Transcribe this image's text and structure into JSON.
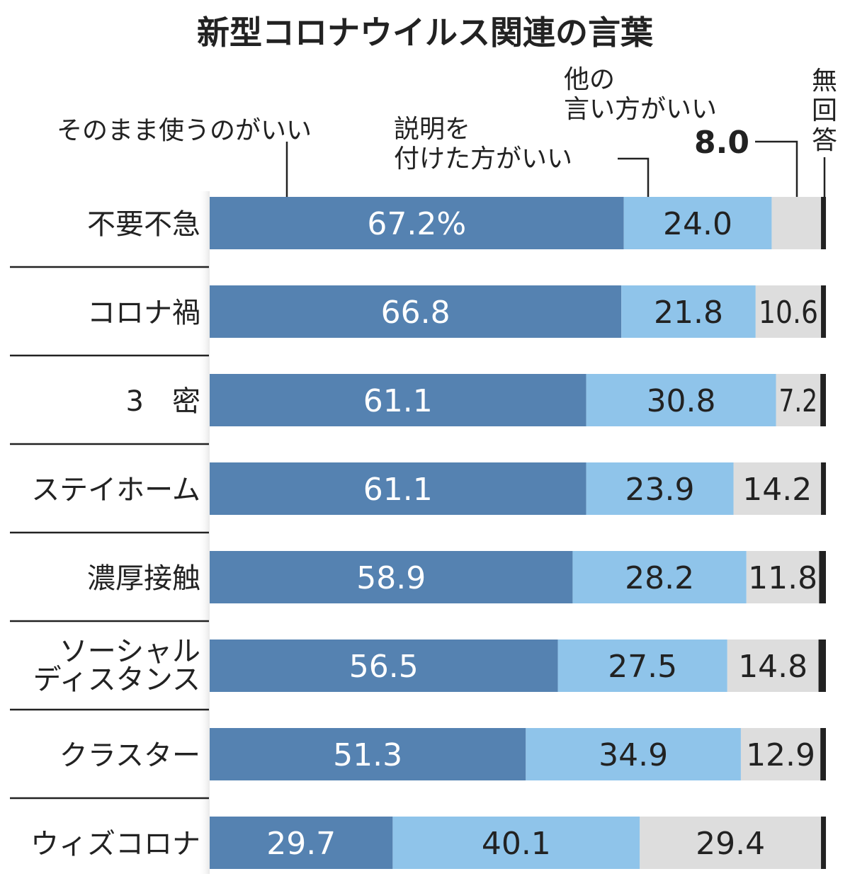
{
  "chart_data": {
    "type": "bar",
    "orientation": "horizontal",
    "stacked": true,
    "title": "新型コロナウイルス関連の言葉",
    "xlim": [
      0,
      100
    ],
    "grid": false,
    "categories": [
      "不要不急",
      "コロナ禍",
      "3　密",
      "ステイホーム",
      "濃厚接触",
      "ソーシャル\nディスタンス",
      "クラスター",
      "ウィズコロナ"
    ],
    "series": [
      {
        "name": "そのまま使うのがいい",
        "color": "#5582b1",
        "text_color": "#ffffff",
        "values": [
          67.2,
          66.8,
          61.1,
          61.1,
          58.9,
          56.5,
          51.3,
          29.7
        ],
        "labels": [
          "67.2%",
          "66.8",
          "61.1",
          "61.1",
          "58.9",
          "56.5",
          "51.3",
          "29.7"
        ]
      },
      {
        "name": "説明を付けた方がいい",
        "color": "#8fc4ea",
        "text_color": "#222222",
        "values": [
          24.0,
          21.8,
          30.8,
          23.9,
          28.2,
          27.5,
          34.9,
          40.1
        ],
        "labels": [
          "24.0",
          "21.8",
          "30.8",
          "23.9",
          "28.2",
          "27.5",
          "34.9",
          "40.1"
        ]
      },
      {
        "name": "他の言い方がいい",
        "color": "#dddddd",
        "text_color": "#222222",
        "values": [
          8.0,
          10.6,
          7.2,
          14.2,
          11.8,
          14.8,
          12.9,
          29.4
        ],
        "labels": [
          "",
          "10.6",
          "7.2",
          "14.2",
          "11.8",
          "14.8",
          "12.9",
          "29.4"
        ]
      },
      {
        "name": "無回答",
        "color": "#222222",
        "text_color": "#222222",
        "values": [
          0.8,
          0.8,
          0.9,
          0.8,
          1.1,
          1.2,
          0.9,
          0.8
        ],
        "labels": [
          "",
          "",
          "",
          "",
          "",
          "",
          "",
          ""
        ]
      }
    ],
    "annotations": {
      "series1_label": "そのまま使うのがいい",
      "series2_label_line1": "説明を",
      "series2_label_line2": "付けた方がいい",
      "series3_label_line1": "他の",
      "series3_label_line2": "言い方がいい",
      "series3_first_value": "8.0",
      "series4_label": [
        "無",
        "回",
        "答"
      ]
    }
  }
}
